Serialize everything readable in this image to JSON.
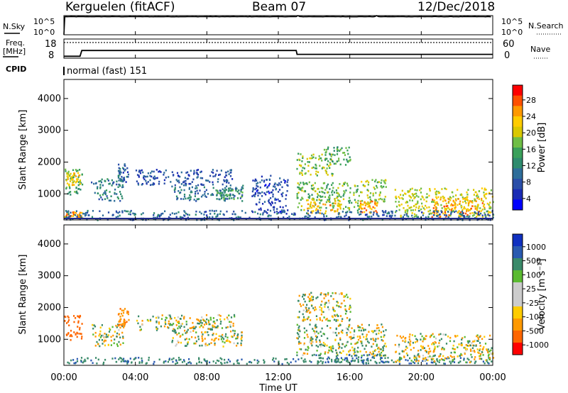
{
  "header": {
    "station": "Kerguelen (fitACF)",
    "beam": "Beam 07",
    "date": "12/Dec/2018"
  },
  "colors": {
    "noise_line": "#000000",
    "ground_band": "#1f2a8a"
  },
  "noise_panel": {
    "left_label": "N.Sky",
    "right_label": "N.Search",
    "y_ticks_left": [
      "10^5",
      "10^0"
    ],
    "y_ticks_right": [
      "10^5",
      "10^0"
    ]
  },
  "freq_panel": {
    "left_label_1": "Freq.",
    "left_label_2": "[MHz]",
    "right_label": "Nave",
    "y_ticks_left": [
      "18",
      "8"
    ],
    "y_ticks_right": [
      "60",
      "0"
    ],
    "cpid_label": "CPID",
    "cpid_value": "normal (fast) 151"
  },
  "power_panel": {
    "ylabel": "Slant Range [km]",
    "y_ticks": [
      "4000",
      "3000",
      "2000",
      "1000"
    ],
    "colorbar_label": "Power [dB]",
    "colorbar_ticks": [
      "28",
      "24",
      "20",
      "16",
      "12",
      "8",
      "4"
    ],
    "colorbar_colors": [
      "#ff0000",
      "#ff5000",
      "#ff9900",
      "#ffcc00",
      "#d9c800",
      "#6fbe45",
      "#3aa05a",
      "#2e8b6e",
      "#2e6e9a",
      "#2a4ea8",
      "#1a2bb5",
      "#0000ff"
    ]
  },
  "velocity_panel": {
    "ylabel": "Slant Range [km]",
    "y_ticks": [
      "4000",
      "3000",
      "2000",
      "1000"
    ],
    "colorbar_label": "Velocity [m s⁻¹]",
    "colorbar_ticks": [
      "1000",
      "500",
      "100",
      "25",
      "-25",
      "-100",
      "-500",
      "-1000"
    ],
    "colorbar_colors": [
      "#1030c0",
      "#2a5ab0",
      "#3a8a6a",
      "#5aba30",
      "#cccccc",
      "#cccccc",
      "#ffcc00",
      "#ff9900",
      "#ff6600",
      "#ff0000"
    ]
  },
  "x_axis": {
    "label": "Time UT",
    "ticks": [
      "00:00",
      "04:00",
      "08:00",
      "12:00",
      "16:00",
      "20:00",
      "00:00"
    ]
  },
  "chart_data": [
    {
      "type": "line",
      "name": "noise",
      "x_hours": [
        0,
        0.2,
        1,
        3,
        6,
        9,
        12,
        15,
        18,
        21,
        24
      ],
      "sky_level": "near 10^5 throughout",
      "ylim_log": [
        0,
        5
      ]
    },
    {
      "type": "line",
      "name": "frequency",
      "x_hours": [
        0,
        0.9,
        1.0,
        13.0,
        13.05,
        24
      ],
      "values_mhz": [
        9,
        9,
        12,
        12,
        10,
        10
      ],
      "ylim": [
        8,
        18
      ],
      "nave_dotted_level": 49,
      "nave_ylim": [
        0,
        60
      ]
    },
    {
      "type": "heatmap",
      "name": "power",
      "x_range_hours": [
        0,
        24
      ],
      "y_range_km": [
        180,
        4600
      ],
      "value_range_db": [
        0,
        32
      ],
      "clusters": [
        {
          "t0": 0.0,
          "t1": 1.0,
          "r0": 1000,
          "r1": 1800,
          "db": 14
        },
        {
          "t0": 0.1,
          "t1": 0.9,
          "r0": 1300,
          "r1": 1700,
          "db": 22
        },
        {
          "t0": 1.5,
          "t1": 3.3,
          "r0": 800,
          "r1": 1500,
          "db": 10
        },
        {
          "t0": 3.0,
          "t1": 3.6,
          "r0": 1400,
          "r1": 2000,
          "db": 8
        },
        {
          "t0": 4.0,
          "t1": 9.5,
          "r0": 1300,
          "r1": 1800,
          "db": 6
        },
        {
          "t0": 6.0,
          "t1": 10.0,
          "r0": 800,
          "r1": 1300,
          "db": 9
        },
        {
          "t0": 8.5,
          "t1": 10.0,
          "r0": 850,
          "r1": 1150,
          "db": 14
        },
        {
          "t0": 10.5,
          "t1": 12.5,
          "r0": 400,
          "r1": 1600,
          "db": 5
        },
        {
          "t0": 13.0,
          "t1": 15.0,
          "r0": 1600,
          "r1": 2300,
          "db": 18
        },
        {
          "t0": 14.5,
          "t1": 16.0,
          "r0": 1900,
          "r1": 2500,
          "db": 14
        },
        {
          "t0": 13.0,
          "t1": 16.5,
          "r0": 500,
          "r1": 1400,
          "db": 16
        },
        {
          "t0": 13.5,
          "t1": 15.5,
          "r0": 400,
          "r1": 900,
          "db": 24
        },
        {
          "t0": 16.5,
          "t1": 18.0,
          "r0": 700,
          "r1": 1500,
          "db": 18
        },
        {
          "t0": 16.5,
          "t1": 17.5,
          "r0": 400,
          "r1": 800,
          "db": 26
        },
        {
          "t0": 18.5,
          "t1": 24.0,
          "r0": 300,
          "r1": 1200,
          "db": 20
        },
        {
          "t0": 20.5,
          "t1": 23.5,
          "r0": 300,
          "r1": 900,
          "db": 26
        },
        {
          "t0": 0.0,
          "t1": 1.0,
          "r0": 250,
          "r1": 450,
          "db": 26
        },
        {
          "t0": 0.0,
          "t1": 24.0,
          "r0": 200,
          "r1": 500,
          "db": 8
        }
      ]
    },
    {
      "type": "heatmap",
      "name": "velocity",
      "x_range_hours": [
        0,
        24
      ],
      "y_range_km": [
        180,
        4600
      ],
      "value_range_ms": [
        -1000,
        1000
      ],
      "clusters": [
        {
          "t0": 0.0,
          "t1": 1.0,
          "r0": 1000,
          "r1": 1800,
          "v": -300
        },
        {
          "t0": 0.0,
          "t1": 24.0,
          "r0": 250,
          "r1": 450,
          "v": 80
        },
        {
          "t0": 1.5,
          "t1": 3.3,
          "r0": 800,
          "r1": 1500,
          "v": 0
        },
        {
          "t0": 3.0,
          "t1": 3.6,
          "r0": 1400,
          "r1": 2000,
          "v": -80
        },
        {
          "t0": 4.0,
          "t1": 9.5,
          "r0": 1300,
          "r1": 1800,
          "v": 0
        },
        {
          "t0": 6.0,
          "t1": 10.0,
          "r0": 800,
          "r1": 1300,
          "v": 0
        },
        {
          "t0": 13.0,
          "t1": 16.0,
          "r0": 1600,
          "r1": 2500,
          "v": 0
        },
        {
          "t0": 13.0,
          "t1": 18.0,
          "r0": 500,
          "r1": 1500,
          "v": 10
        },
        {
          "t0": 14.0,
          "t1": 18.0,
          "r0": 300,
          "r1": 550,
          "v": 90
        },
        {
          "t0": 18.5,
          "t1": 24.0,
          "r0": 300,
          "r1": 1200,
          "v": -10
        }
      ]
    }
  ]
}
